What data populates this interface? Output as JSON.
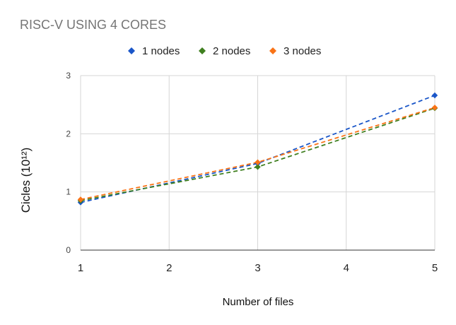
{
  "chart_data": {
    "type": "line",
    "title": "RISC-V USING 4 CORES",
    "xlabel": "Number of files",
    "ylabel": "Cicles (10¹²)",
    "x": [
      1,
      2,
      3,
      4,
      5
    ],
    "x_tick_labels": [
      "1",
      "2",
      "3",
      "4",
      "5"
    ],
    "y_tick_labels": [
      "0",
      "1",
      "2",
      "3"
    ],
    "xlim": [
      1,
      5
    ],
    "ylim": [
      0,
      3
    ],
    "grid": true,
    "legend_position": "top",
    "line_style": "dashed",
    "marker": "diamond",
    "series": [
      {
        "name": "1 nodes",
        "color": "#1a56c8",
        "points": [
          [
            1,
            0.82
          ],
          [
            3,
            1.49
          ],
          [
            5,
            2.66
          ]
        ]
      },
      {
        "name": "2 nodes",
        "color": "#3f7f1f",
        "points": [
          [
            1,
            0.85
          ],
          [
            3,
            1.43
          ],
          [
            5,
            2.44
          ]
        ]
      },
      {
        "name": "3 nodes",
        "color": "#f97316",
        "points": [
          [
            1,
            0.87
          ],
          [
            3,
            1.51
          ],
          [
            5,
            2.45
          ]
        ]
      }
    ]
  }
}
